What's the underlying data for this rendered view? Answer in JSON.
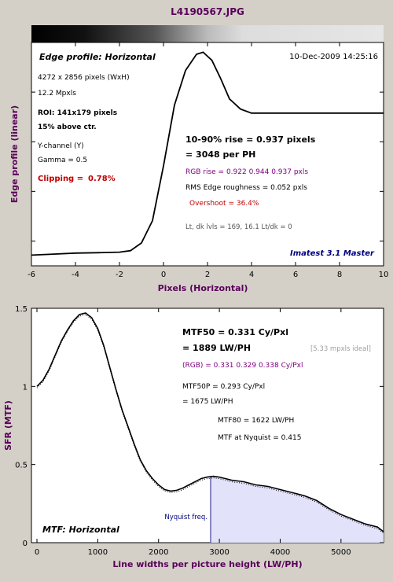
{
  "window_title": "L4190567.JPG",
  "colors": {
    "background": "#d4d0c8",
    "curve": "#000000",
    "axis_label": "#5a005a",
    "rgb_text": "#800080",
    "clipping": "#c00000",
    "footer": "#00007f",
    "mtf_fill": "#e2e2fb",
    "nyquist_line": "#6464b4",
    "ideal_text": "#a0a0a0"
  },
  "edge_panel": {
    "title": "Edge profile: Horizontal",
    "timestamp": "10-Dec-2009 14:25:16",
    "xlabel": "Pixels (Horizontal)",
    "ylabel": "Edge profile (linear)",
    "info": {
      "pixels": "4272 x 2856 pixels (WxH)",
      "mpxls": "12.2 Mpxls",
      "roi": "ROI:  141x179 pixels",
      "above_ctr": "15% above ctr.",
      "channel": "Y-channel  (Y)",
      "gamma": "Gamma = 0.5",
      "clipping_label": "Clipping =",
      "clipping_value": "0.78%",
      "rise": "10-90% rise = 0.937 pixels",
      "per_ph": "= 3048 per PH",
      "rgb_rise": "RGB rise = 0.922  0.944  0.937 pxls",
      "roughness": "RMS Edge roughness = 0.052 pxls",
      "overshoot": "Overshoot = 36.4%",
      "levels": "Lt, dk lvls = 169, 16.1   Lt/dk = 0",
      "footer": "Imatest 3.1 Master"
    }
  },
  "mtf_panel": {
    "title": "MTF: Horizontal",
    "xlabel": "Line widths per picture height (LW/PH)",
    "ylabel": "SFR (MTF)",
    "nyquist_label": "Nyquist freq.",
    "info": {
      "mtf50": "MTF50 = 0.331 Cy/Pxl",
      "mtf50_lwph": "= 1889 LW/PH",
      "ideal": "[5.33 mpxls ideal]",
      "rgb": "(RGB) = 0.331  0.329  0.338 Cy/Pxl",
      "mtf50p": "MTF50P = 0.293 Cy/Pxl",
      "mtf50p_lwph": "= 1675 LW/PH",
      "mtf80": "MTF80 = 1622 LW/PH",
      "nyquist_mtf": "MTF at Nyquist = 0.415"
    }
  },
  "chart_data": [
    {
      "type": "line",
      "title": "Edge profile: Horizontal",
      "xlabel": "Pixels (Horizontal)",
      "ylabel": "Edge profile (linear)",
      "xlim": [
        -6,
        10
      ],
      "ylim": [
        0,
        1
      ],
      "xticks": [
        "-6",
        "-4",
        "-2",
        "0",
        "2",
        "4",
        "6",
        "8",
        "10"
      ],
      "grid": false,
      "series": [
        {
          "x": [
            -6,
            -5,
            -4,
            -3,
            -2,
            -1.5,
            -1,
            -0.5,
            0,
            0.5,
            1,
            1.5,
            1.8,
            2.2,
            2.6,
            3,
            3.5,
            4,
            5,
            6,
            7,
            8,
            9,
            10
          ],
          "y": [
            0.01,
            0.015,
            0.02,
            0.022,
            0.025,
            0.032,
            0.07,
            0.18,
            0.45,
            0.75,
            0.92,
            1.0,
            1.01,
            0.97,
            0.88,
            0.78,
            0.73,
            0.71,
            0.71,
            0.71,
            0.71,
            0.71,
            0.71,
            0.71
          ]
        }
      ]
    },
    {
      "type": "line",
      "title": "MTF: Horizontal",
      "xlabel": "Line widths per picture height (LW/PH)",
      "ylabel": "SFR (MTF)",
      "xlim": [
        0,
        5700
      ],
      "ylim": [
        0,
        1.5
      ],
      "xticks": [
        "0",
        "1000",
        "2000",
        "3000",
        "4000",
        "5000"
      ],
      "yticks": [
        "0",
        "0.5",
        "1",
        "1.5"
      ],
      "nyquist_x": 2856,
      "grid": false,
      "series": [
        {
          "x": [
            0,
            100,
            200,
            300,
            400,
            500,
            600,
            700,
            800,
            900,
            1000,
            1100,
            1200,
            1300,
            1400,
            1500,
            1600,
            1700,
            1800,
            1900,
            2000,
            2100,
            2200,
            2300,
            2400,
            2500,
            2600,
            2700,
            2800,
            2900,
            3000,
            3200,
            3400,
            3600,
            3800,
            4000,
            4200,
            4400,
            4600,
            4800,
            5000,
            5200,
            5400,
            5600,
            5700
          ],
          "y": [
            1.0,
            1.04,
            1.11,
            1.2,
            1.29,
            1.36,
            1.42,
            1.46,
            1.47,
            1.44,
            1.37,
            1.26,
            1.12,
            0.98,
            0.85,
            0.74,
            0.63,
            0.53,
            0.46,
            0.41,
            0.37,
            0.34,
            0.33,
            0.335,
            0.35,
            0.37,
            0.39,
            0.41,
            0.42,
            0.425,
            0.42,
            0.4,
            0.39,
            0.37,
            0.36,
            0.34,
            0.32,
            0.3,
            0.27,
            0.22,
            0.18,
            0.15,
            0.12,
            0.1,
            0.07
          ]
        }
      ]
    }
  ]
}
